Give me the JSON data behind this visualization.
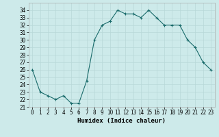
{
  "xlabel": "Humidex (Indice chaleur)",
  "x": [
    0,
    1,
    2,
    3,
    4,
    5,
    6,
    7,
    8,
    9,
    10,
    11,
    12,
    13,
    14,
    15,
    16,
    17,
    18,
    19,
    20,
    21,
    22,
    23
  ],
  "y": [
    26,
    23,
    22.5,
    22,
    22.5,
    21.5,
    21.5,
    24.5,
    30,
    32,
    32.5,
    34,
    33.5,
    33.5,
    33,
    34,
    33,
    32,
    32,
    32,
    30,
    29,
    27,
    26
  ],
  "ylim": [
    21,
    35
  ],
  "xlim": [
    -0.5,
    23.5
  ],
  "yticks": [
    21,
    22,
    23,
    24,
    25,
    26,
    27,
    28,
    29,
    30,
    31,
    32,
    33,
    34
  ],
  "xticks": [
    0,
    1,
    2,
    3,
    4,
    5,
    6,
    7,
    8,
    9,
    10,
    11,
    12,
    13,
    14,
    15,
    16,
    17,
    18,
    19,
    20,
    21,
    22,
    23
  ],
  "line_color": "#1a6b6b",
  "marker": "+",
  "bg_color": "#cdeaea",
  "grid_color": "#b8d8d8",
  "label_fontsize": 6.5,
  "tick_fontsize": 5.5
}
